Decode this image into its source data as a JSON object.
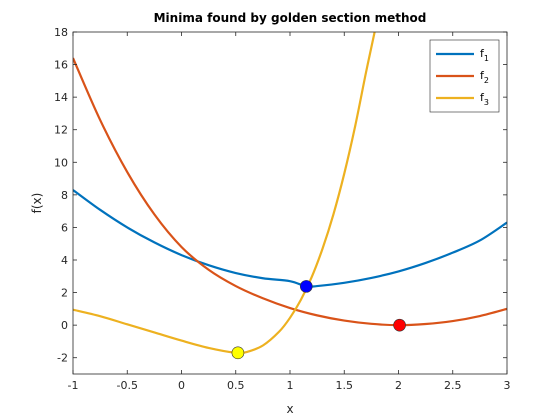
{
  "chart_data": {
    "type": "line",
    "title": "Minima found by golden section method",
    "xlabel": "x",
    "ylabel": "f(x)",
    "xlim": [
      -1,
      3
    ],
    "ylim": [
      -3,
      18
    ],
    "xticks": [
      "-1",
      "-0.5",
      "0",
      "0.5",
      "1",
      "1.5",
      "2",
      "2.5",
      "3"
    ],
    "yticks": [
      "-2",
      "0",
      "2",
      "4",
      "6",
      "8",
      "10",
      "12",
      "14",
      "16",
      "18"
    ],
    "legend_position": "top-right",
    "grid": false,
    "series": [
      {
        "name": "f",
        "subscript": "1",
        "color": "#0072BD",
        "x": [
          -1,
          -0.75,
          -0.5,
          -0.25,
          0,
          0.25,
          0.5,
          0.75,
          1,
          1.15,
          1.25,
          1.5,
          1.75,
          2,
          2.25,
          2.5,
          2.75,
          3
        ],
        "y": [
          8.3,
          7.08,
          6.0,
          5.08,
          4.3,
          3.68,
          3.2,
          2.88,
          2.7,
          2.38,
          2.4,
          2.6,
          2.9,
          3.3,
          3.82,
          4.45,
          5.2,
          6.3
        ]
      },
      {
        "name": "f",
        "subscript": "2",
        "color": "#D95319",
        "x": [
          -1,
          -0.75,
          -0.5,
          -0.25,
          0,
          0.25,
          0.5,
          0.75,
          1,
          1.25,
          1.5,
          1.75,
          2,
          2.25,
          2.5,
          2.75,
          3
        ],
        "y": [
          16.4,
          12.6,
          9.4,
          6.8,
          4.8,
          3.4,
          2.4,
          1.65,
          1.05,
          0.6,
          0.28,
          0.08,
          0.0,
          0.07,
          0.25,
          0.56,
          1.0
        ]
      },
      {
        "name": "f",
        "subscript": "3",
        "color": "#EDB120",
        "x": [
          -1,
          -0.75,
          -0.5,
          -0.25,
          0,
          0.25,
          0.5,
          0.6,
          0.75,
          0.9,
          1.0,
          1.1,
          1.2,
          1.3,
          1.4,
          1.5,
          1.6,
          1.7,
          1.78
        ],
        "y": [
          0.95,
          0.55,
          0.05,
          -0.45,
          -0.95,
          -1.4,
          -1.7,
          -1.65,
          -1.25,
          -0.4,
          0.45,
          1.55,
          2.95,
          4.7,
          6.8,
          9.3,
          12.2,
          15.5,
          18.0
        ]
      }
    ],
    "minima": [
      {
        "x": 1.15,
        "y": 2.38,
        "color": "#0000FF"
      },
      {
        "x": 2.01,
        "y": 0.0,
        "color": "#FF0000"
      },
      {
        "x": 0.52,
        "y": -1.7,
        "color": "#FFFF00"
      }
    ]
  }
}
